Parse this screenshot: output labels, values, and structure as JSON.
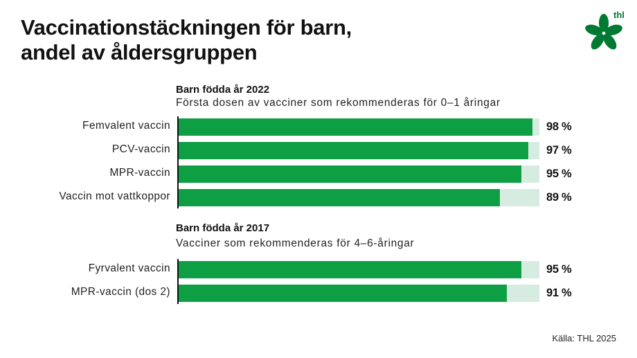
{
  "title_line1": "Vaccinationstäckningen för barn,",
  "title_line2": "andel av åldersgruppen",
  "logo_text": "thl",
  "source": "Källa: THL 2025",
  "colors": {
    "bar": "#0e9f45",
    "bar_track": "#d7ece0",
    "logo": "#007a33"
  },
  "chart_data": {
    "type": "bar",
    "orientation": "horizontal",
    "xlim": [
      0,
      100
    ],
    "unit": "%",
    "groups": [
      {
        "title": "Barn födda år 2022",
        "subtitle": "Första dosen av vacciner som rekommenderas för 0–1 åringar",
        "categories": [
          "Femvalent vaccin",
          "PCV-vaccin",
          "MPR-vaccin",
          "Vaccin mot vattkoppor"
        ],
        "values": [
          98,
          97,
          95,
          89
        ],
        "labels": [
          "98 %",
          "97 %",
          "95 %",
          "89 %"
        ]
      },
      {
        "title": "Barn födda år 2017",
        "subtitle": "Vacciner som rekommenderas för 4–6-åringar",
        "categories": [
          "Fyrvalent vaccin",
          "MPR-vaccin (dos 2)"
        ],
        "values": [
          95,
          91
        ],
        "labels": [
          "95 %",
          "91 %"
        ]
      }
    ]
  }
}
